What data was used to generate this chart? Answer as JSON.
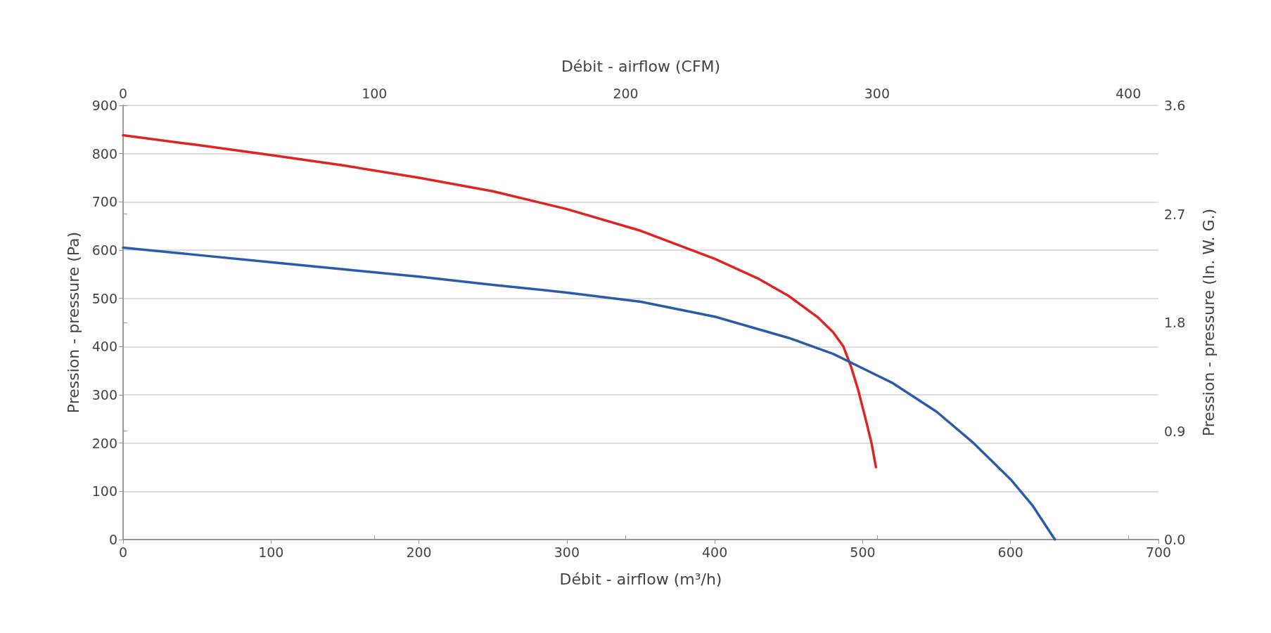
{
  "chart_data": {
    "type": "line",
    "xlabel": "Débit - airflow (m³/h)",
    "ylabel": "Pression - pressure (Pa)",
    "y2label": "Pression - pressure (In. W. G.)",
    "x2label": "Débit - airflow (CFM)",
    "xlim": [
      0,
      700
    ],
    "xticks": [
      0,
      100,
      200,
      300,
      400,
      500,
      600,
      700
    ],
    "ylim": [
      0,
      900
    ],
    "yticks": [
      0,
      100,
      200,
      300,
      400,
      500,
      600,
      700,
      800,
      900
    ],
    "y2lim": [
      0,
      3.6
    ],
    "y2ticks": [
      {
        "value": 0,
        "label": "0.0"
      },
      0.9,
      1.8,
      2.7,
      3.6
    ],
    "x2lim": [
      0,
      412
    ],
    "x2ticks": [
      0,
      100,
      200,
      300,
      400
    ],
    "grid": "y",
    "marker": "none",
    "line_style": "solid",
    "series": [
      {
        "color": "#e02424",
        "x": [
          0,
          50,
          100,
          150,
          200,
          250,
          300,
          350,
          400,
          430,
          450,
          470,
          480,
          487,
          492,
          497,
          502,
          506,
          509
        ],
        "values": [
          838,
          818,
          797,
          775,
          750,
          722,
          685,
          640,
          582,
          540,
          505,
          460,
          430,
          400,
          360,
          310,
          250,
          200,
          150
        ]
      },
      {
        "color": "#2a5caa",
        "x": [
          0,
          50,
          100,
          150,
          200,
          250,
          300,
          350,
          400,
          450,
          480,
          500,
          520,
          550,
          575,
          600,
          615,
          630
        ],
        "values": [
          605,
          590,
          575,
          560,
          545,
          528,
          512,
          493,
          462,
          418,
          385,
          355,
          325,
          265,
          200,
          125,
          70,
          0
        ]
      }
    ]
  }
}
